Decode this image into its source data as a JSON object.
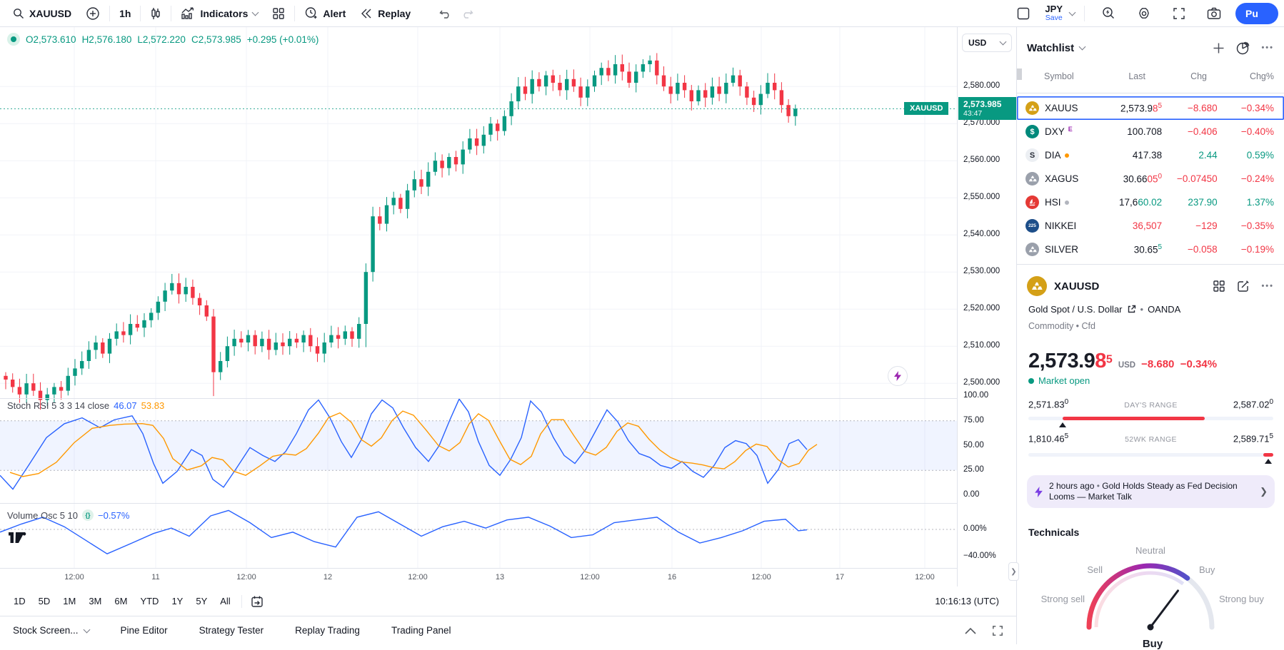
{
  "toolbar": {
    "symbol": "XAUUSD",
    "interval": "1h",
    "indicators_label": "Indicators",
    "alert_label": "Alert",
    "replay_label": "Replay",
    "currency": "JPY",
    "save_label": "Save",
    "publish_label": "Pu"
  },
  "legend": {
    "open": "O2,573.610",
    "high": "H2,576.180",
    "low": "L2,572.220",
    "close": "C2,573.985",
    "change": "+0.295 (+0.01%)"
  },
  "price_axis": {
    "currency": "USD",
    "labels": [
      "2,580.000",
      "2,570.000",
      "2,560.000",
      "2,550.000",
      "2,540.000",
      "2,530.000",
      "2,520.000",
      "2,510.000",
      "2,500.000"
    ],
    "tag": {
      "symbol": "XAUUSD",
      "price": "2,573.985",
      "countdown": "43:47"
    }
  },
  "panes": {
    "stoch": {
      "title": "Stoch RSI 5 3 3 14 close",
      "k_value": "46.07",
      "d_value": "53.83",
      "scale": [
        "100.00",
        "75.00",
        "50.00",
        "25.00",
        "0.00"
      ]
    },
    "volume": {
      "title": "Volume Osc 5 10",
      "value": "−0.57%",
      "scale": [
        "0.00%",
        "−40.00%"
      ]
    }
  },
  "range_toolbar": {
    "ranges": [
      "1D",
      "5D",
      "1M",
      "3M",
      "6M",
      "YTD",
      "1Y",
      "5Y",
      "All"
    ],
    "clock": "10:16:13 (UTC)"
  },
  "bottom_tabs": [
    "Stock Screen...",
    "Pine Editor",
    "Strategy Tester",
    "Replay Trading",
    "Trading Panel"
  ],
  "watchlist": {
    "title": "Watchlist",
    "columns": [
      "Symbol",
      "Last",
      "Chg",
      "Chg%"
    ],
    "rows": [
      {
        "symbol": "XAUUS",
        "icon": "gold",
        "selected": true,
        "last_prefix": "2,573.9",
        "last_accent": "8",
        "accent_dir": "down",
        "last_sup": "5",
        "sup_dir": "down",
        "chg": "−8.680",
        "pct": "−0.34%",
        "dir": "down"
      },
      {
        "symbol": "DXY",
        "icon": "dxy",
        "badge": "E",
        "last_prefix": "100.708",
        "chg": "−0.406",
        "pct": "−0.40%",
        "dir": "down"
      },
      {
        "symbol": "DIA",
        "icon": "dia",
        "dot": "#ff9800",
        "last_prefix": "417.38",
        "chg": "2.44",
        "pct": "0.59%",
        "dir": "up"
      },
      {
        "symbol": "XAGUS",
        "icon": "silver",
        "last_prefix": "30.66",
        "last_accent": "05",
        "accent_dir": "down",
        "last_sup": "0",
        "sup_dir": "down",
        "chg": "−0.07450",
        "pct": "−0.24%",
        "dir": "down"
      },
      {
        "symbol": "HSI",
        "icon": "hsi",
        "dot": "#b2b5be",
        "last_prefix": "17,6",
        "last_accent": "60.02",
        "accent_dir": "up",
        "chg": "237.90",
        "pct": "1.37%",
        "dir": "up"
      },
      {
        "symbol": "NIKKEI",
        "icon": "nikkei",
        "last_accent": "36,507",
        "accent_dir": "down",
        "chg": "−129",
        "pct": "−0.35%",
        "dir": "down"
      },
      {
        "symbol": "SILVER",
        "icon": "silver",
        "last_prefix": "30.65",
        "last_sup": "5",
        "sup_dir": "up",
        "chg": "−0.058",
        "pct": "−0.19%",
        "dir": "down"
      }
    ]
  },
  "symbol_detail": {
    "symbol": "XAUUSD",
    "name": "Gold Spot / U.S. Dollar",
    "exchange": "OANDA",
    "meta": "Commodity • Cfd",
    "price_main": "2,573.9",
    "price_accent": "8",
    "price_sup": "5",
    "currency": "USD",
    "change": "−8.680",
    "change_pct": "−0.34%",
    "market_status": "Market open",
    "days_range": {
      "low": "2,571.83",
      "low_sup": "0",
      "label": "DAY'S RANGE",
      "high": "2,587.02",
      "high_sup": "0",
      "fill_start": 14,
      "fill_end": 72,
      "marker": 14
    },
    "wk52_range": {
      "low": "1,810.46",
      "low_sup": "5",
      "label": "52WK RANGE",
      "high": "2,589.71",
      "high_sup": "5",
      "fill_start": 96,
      "fill_end": 100,
      "marker": 98
    }
  },
  "news": {
    "time": "2 hours ago",
    "sep": "•",
    "headline": "Gold Holds Steady as Fed Decision Looms — Market Talk"
  },
  "technicals": {
    "title": "Technicals",
    "labels": {
      "strong_sell": "Strong sell",
      "sell": "Sell",
      "neutral": "Neutral",
      "buy": "Buy",
      "strong_buy": "Strong buy"
    },
    "verdict": "Buy",
    "needle_deg_from_vertical": 37
  },
  "chart_data": {
    "type": "candlestick",
    "symbol": "XAUUSD",
    "interval": "1h",
    "title": "XAUUSD 1h candlestick chart with Stoch RSI and Volume Oscillator",
    "ohlc": {
      "open": 2573.61,
      "high": 2576.18,
      "low": 2572.22,
      "close": 2573.985,
      "change": 0.295,
      "change_pct": 0.01
    },
    "ylim": [
      2496,
      2596
    ],
    "grid_prices": [
      2500,
      2510,
      2520,
      2530,
      2540,
      2550,
      2560,
      2570,
      2580
    ],
    "last_price": 2573.985,
    "x_ticks": [
      {
        "label": "12:00",
        "x": 104
      },
      {
        "label": "11",
        "x": 218
      },
      {
        "label": "12:00",
        "x": 345
      },
      {
        "label": "12",
        "x": 459
      },
      {
        "label": "12:00",
        "x": 585
      },
      {
        "label": "13",
        "x": 700
      },
      {
        "label": "12:00",
        "x": 826
      },
      {
        "label": "16",
        "x": 941
      },
      {
        "label": "12:00",
        "x": 1066
      },
      {
        "label": "17",
        "x": 1176
      },
      {
        "label": "12:00",
        "x": 1295
      }
    ],
    "candles_close": [
      2501,
      2499,
      2497,
      2500,
      2498,
      2495.5,
      2497,
      2499,
      2498,
      2502,
      2504,
      2506,
      2509,
      2511,
      2508,
      2512,
      2514,
      2513,
      2516,
      2515,
      2517,
      2519,
      2522,
      2525,
      2527,
      2524,
      2526,
      2523,
      2521,
      2518,
      2503,
      2506,
      2510,
      2512,
      2511,
      2513,
      2510,
      2512,
      2509,
      2511,
      2510,
      2512,
      2511,
      2513,
      2510,
      2508,
      2511,
      2513,
      2512,
      2514,
      2512,
      2516,
      2530,
      2545,
      2543,
      2548,
      2550,
      2547,
      2552,
      2555,
      2553,
      2557,
      2560,
      2558,
      2561,
      2559,
      2563,
      2566,
      2564,
      2567,
      2570,
      2568,
      2572,
      2576,
      2580,
      2578,
      2582,
      2580,
      2583,
      2581,
      2579,
      2582,
      2580,
      2577,
      2580,
      2583,
      2585,
      2583,
      2586,
      2584,
      2581,
      2584,
      2586,
      2587,
      2583,
      2580,
      2578,
      2581,
      2579,
      2576,
      2579,
      2577,
      2580,
      2578,
      2581,
      2583,
      2580,
      2577,
      2575,
      2578,
      2581,
      2579,
      2575,
      2572,
      2574
    ],
    "indicators": [
      {
        "name": "Stoch RSI",
        "params": "5 3 3 14 close",
        "k": 46.07,
        "d": 53.83,
        "bands": [
          75,
          25
        ],
        "scale_values": [
          100,
          75,
          50,
          25,
          0
        ],
        "k_points": [
          [
            0,
            20
          ],
          [
            18,
            6
          ],
          [
            40,
            30
          ],
          [
            65,
            58
          ],
          [
            90,
            72
          ],
          [
            115,
            78
          ],
          [
            140,
            68
          ],
          [
            160,
            76
          ],
          [
            185,
            80
          ],
          [
            200,
            62
          ],
          [
            215,
            32
          ],
          [
            228,
            12
          ],
          [
            248,
            24
          ],
          [
            268,
            46
          ],
          [
            283,
            40
          ],
          [
            298,
            16
          ],
          [
            313,
            8
          ],
          [
            330,
            26
          ],
          [
            350,
            48
          ],
          [
            368,
            40
          ],
          [
            385,
            34
          ],
          [
            400,
            44
          ],
          [
            415,
            62
          ],
          [
            432,
            86
          ],
          [
            446,
            96
          ],
          [
            462,
            78
          ],
          [
            478,
            54
          ],
          [
            492,
            38
          ],
          [
            506,
            56
          ],
          [
            520,
            82
          ],
          [
            535,
            96
          ],
          [
            550,
            88
          ],
          [
            565,
            68
          ],
          [
            582,
            48
          ],
          [
            600,
            34
          ],
          [
            615,
            50
          ],
          [
            630,
            76
          ],
          [
            643,
            97
          ],
          [
            656,
            84
          ],
          [
            670,
            54
          ],
          [
            685,
            30
          ],
          [
            700,
            20
          ],
          [
            715,
            36
          ],
          [
            730,
            58
          ],
          [
            743,
            95
          ],
          [
            758,
            84
          ],
          [
            775,
            58
          ],
          [
            790,
            40
          ],
          [
            805,
            32
          ],
          [
            820,
            46
          ],
          [
            835,
            66
          ],
          [
            850,
            86
          ],
          [
            865,
            74
          ],
          [
            880,
            55
          ],
          [
            895,
            42
          ],
          [
            910,
            38
          ],
          [
            925,
            30
          ],
          [
            940,
            27
          ],
          [
            955,
            34
          ],
          [
            970,
            24
          ],
          [
            985,
            18
          ],
          [
            1000,
            30
          ],
          [
            1015,
            48
          ],
          [
            1030,
            55
          ],
          [
            1045,
            52
          ],
          [
            1060,
            40
          ],
          [
            1075,
            12
          ],
          [
            1090,
            26
          ],
          [
            1105,
            52
          ],
          [
            1118,
            56
          ],
          [
            1130,
            46
          ]
        ]
      },
      {
        "name": "Volume Osc",
        "params": "5 10",
        "value": -0.57,
        "scale_values": [
          0,
          -40
        ],
        "points": [
          [
            0,
            -4
          ],
          [
            30,
            8
          ],
          [
            60,
            18
          ],
          [
            90,
            4
          ],
          [
            120,
            -16
          ],
          [
            150,
            -36
          ],
          [
            185,
            -20
          ],
          [
            215,
            -6
          ],
          [
            240,
            2
          ],
          [
            265,
            -10
          ],
          [
            295,
            20
          ],
          [
            320,
            28
          ],
          [
            350,
            10
          ],
          [
            380,
            -12
          ],
          [
            410,
            -4
          ],
          [
            440,
            -18
          ],
          [
            470,
            -26
          ],
          [
            500,
            18
          ],
          [
            530,
            26
          ],
          [
            560,
            8
          ],
          [
            590,
            -10
          ],
          [
            620,
            4
          ],
          [
            650,
            12
          ],
          [
            680,
            2
          ],
          [
            710,
            14
          ],
          [
            740,
            18
          ],
          [
            770,
            5
          ],
          [
            800,
            -12
          ],
          [
            830,
            -8
          ],
          [
            860,
            10
          ],
          [
            890,
            14
          ],
          [
            920,
            18
          ],
          [
            950,
            -4
          ],
          [
            980,
            -20
          ],
          [
            1010,
            -12
          ],
          [
            1040,
            -2
          ],
          [
            1070,
            12
          ],
          [
            1100,
            15
          ],
          [
            1118,
            -2
          ],
          [
            1130,
            -0.6
          ]
        ]
      }
    ]
  },
  "colors": {
    "up": "#089981",
    "down": "#f23645",
    "accent_blue": "#2962ff",
    "stoch_d_orange": "#ff9800",
    "news_purple": "#7b3fe4"
  }
}
